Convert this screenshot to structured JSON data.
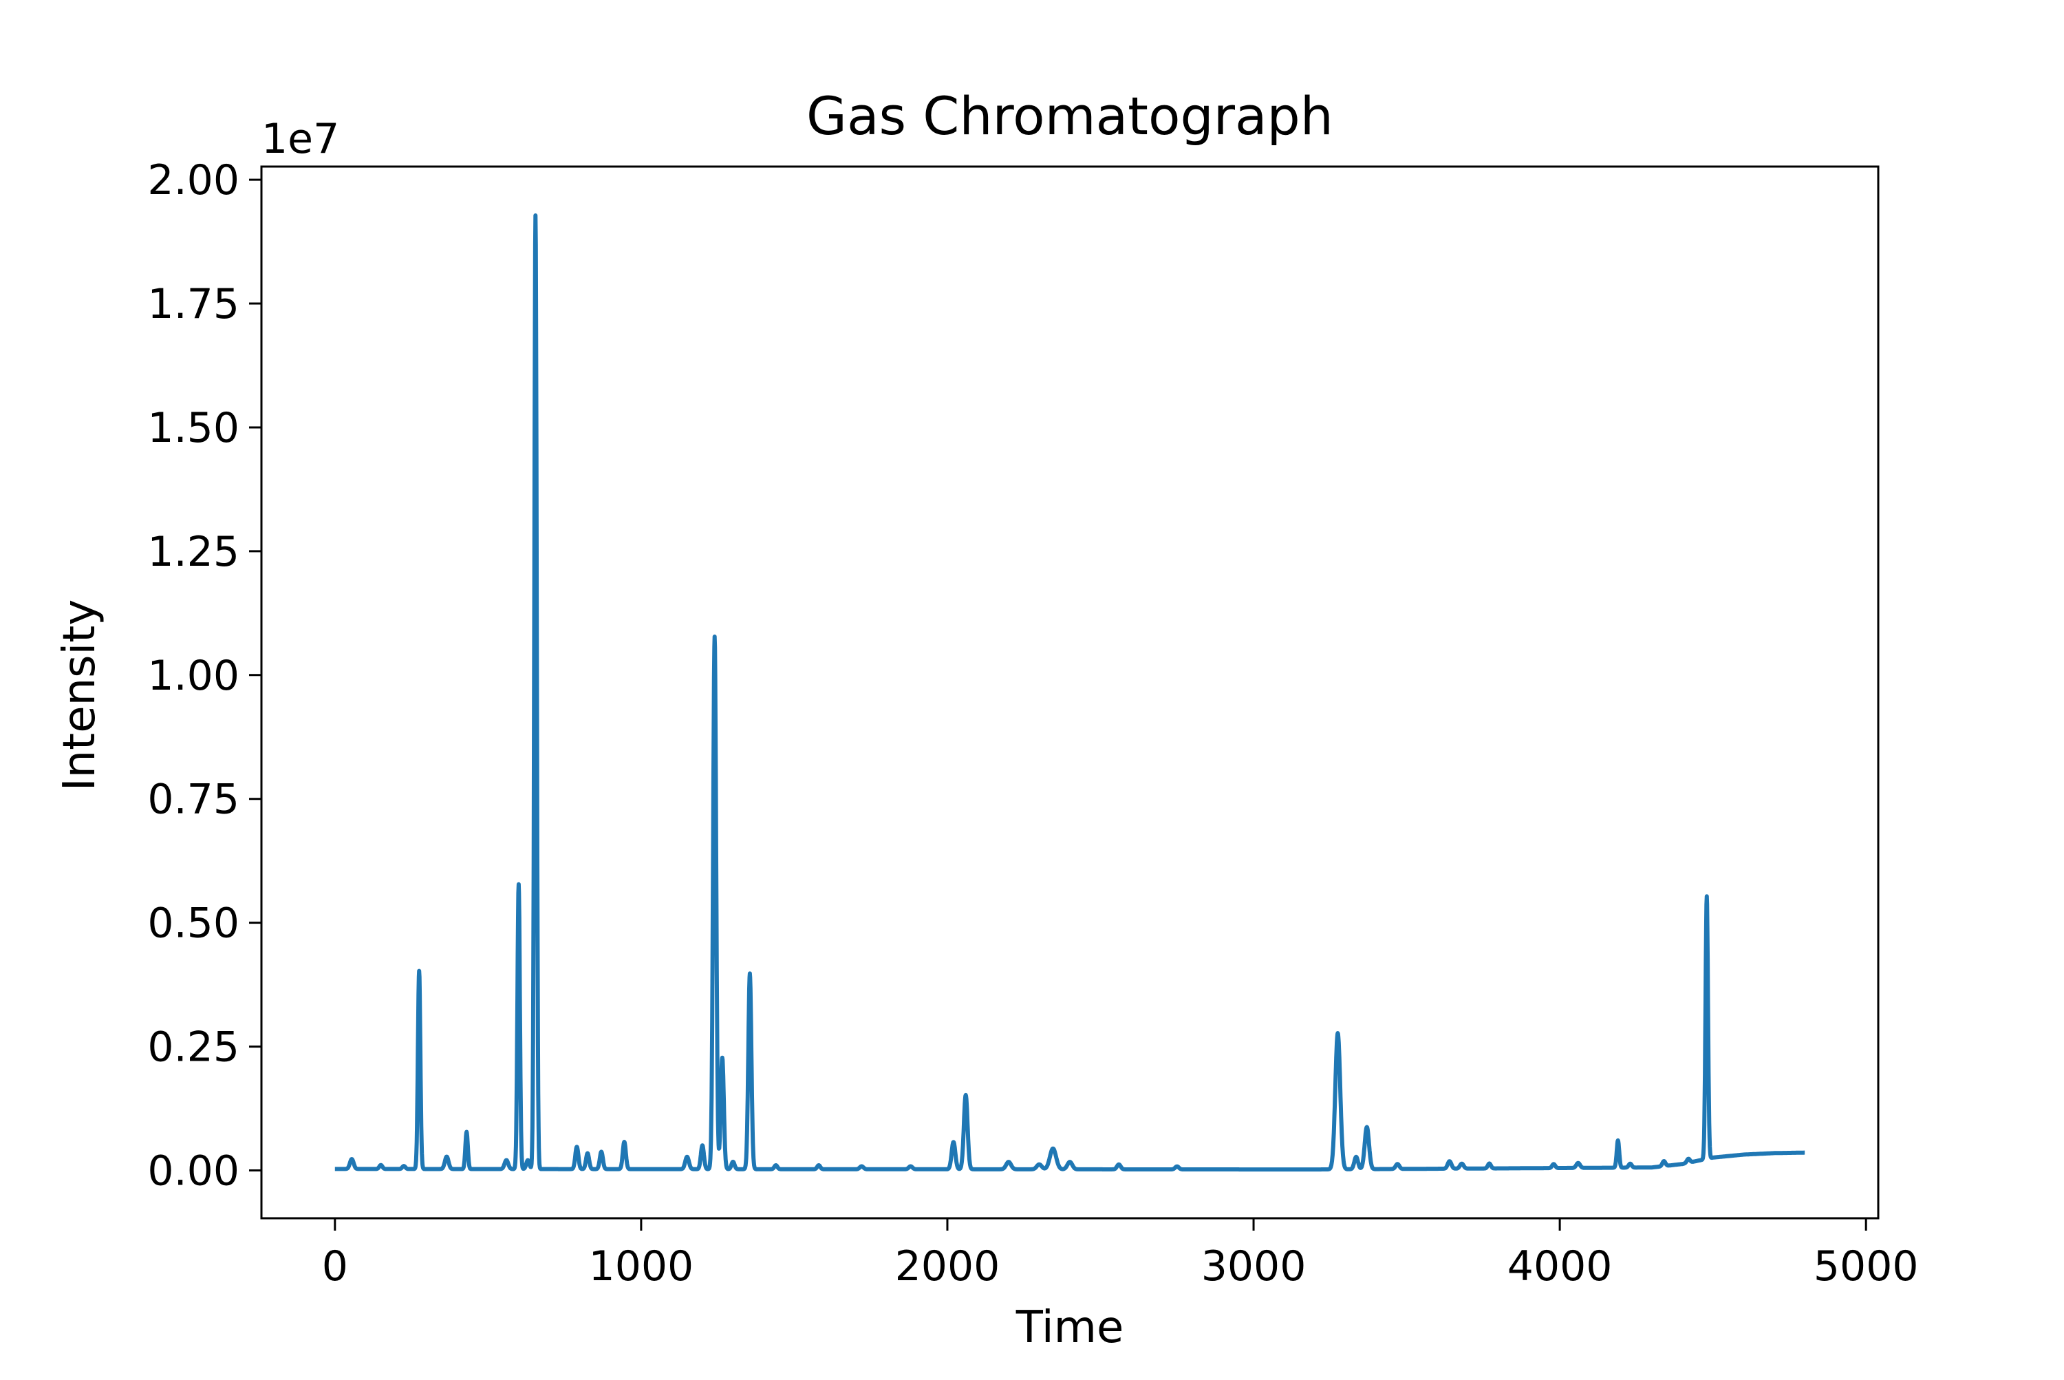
{
  "chart_data": {
    "type": "line",
    "title": "Gas Chromatograph",
    "xlabel": "Time",
    "ylabel": "Intensity",
    "y_offset_label": "1e7",
    "y_scale": 10000000,
    "xlim": [
      -240,
      5040
    ],
    "ylim": [
      -0.0965,
      2.0265
    ],
    "x_ticks": [
      0,
      1000,
      2000,
      3000,
      4000,
      5000
    ],
    "x_tick_labels": [
      "0",
      "1000",
      "2000",
      "3000",
      "4000",
      "5000"
    ],
    "y_ticks": [
      0,
      0.25,
      0.5,
      0.75,
      1.0,
      1.25,
      1.5,
      1.75,
      2.0
    ],
    "y_tick_labels": [
      "0.00",
      "0.25",
      "0.50",
      "0.75",
      "1.00",
      "1.25",
      "1.50",
      "1.75",
      "2.00"
    ],
    "grid": false,
    "legend": "none",
    "series": [
      {
        "color": "#1f77b4",
        "x_range": [
          0,
          4800
        ],
        "baseline": [
          [
            0,
            0.003
          ],
          [
            3200,
            0.002
          ],
          [
            4300,
            0.006
          ],
          [
            4400,
            0.013
          ],
          [
            4500,
            0.026
          ],
          [
            4600,
            0.032
          ],
          [
            4700,
            0.035
          ],
          [
            4800,
            0.036
          ]
        ],
        "peaks": [
          [
            55,
            0.02,
            6
          ],
          [
            150,
            0.008,
            5
          ],
          [
            225,
            0.006,
            5
          ],
          [
            275,
            0.4,
            4
          ],
          [
            365,
            0.025,
            6
          ],
          [
            430,
            0.075,
            4
          ],
          [
            560,
            0.018,
            6
          ],
          [
            600,
            0.575,
            4
          ],
          [
            630,
            0.018,
            5
          ],
          [
            655,
            1.925,
            4
          ],
          [
            790,
            0.045,
            5
          ],
          [
            825,
            0.032,
            5
          ],
          [
            870,
            0.035,
            5
          ],
          [
            945,
            0.055,
            5
          ],
          [
            1150,
            0.025,
            6
          ],
          [
            1200,
            0.048,
            5
          ],
          [
            1240,
            1.075,
            5
          ],
          [
            1265,
            0.225,
            5
          ],
          [
            1300,
            0.015,
            5
          ],
          [
            1355,
            0.395,
            5
          ],
          [
            1440,
            0.008,
            5
          ],
          [
            1580,
            0.008,
            5
          ],
          [
            1720,
            0.006,
            6
          ],
          [
            1880,
            0.006,
            6
          ],
          [
            2020,
            0.055,
            6
          ],
          [
            2060,
            0.15,
            6
          ],
          [
            2200,
            0.015,
            8
          ],
          [
            2300,
            0.01,
            8
          ],
          [
            2345,
            0.042,
            10
          ],
          [
            2400,
            0.015,
            8
          ],
          [
            2560,
            0.01,
            6
          ],
          [
            2750,
            0.006,
            6
          ],
          [
            3275,
            0.275,
            8
          ],
          [
            3335,
            0.025,
            6
          ],
          [
            3370,
            0.085,
            7
          ],
          [
            3470,
            0.01,
            6
          ],
          [
            3640,
            0.015,
            6
          ],
          [
            3680,
            0.01,
            6
          ],
          [
            3770,
            0.01,
            5
          ],
          [
            3980,
            0.008,
            5
          ],
          [
            4060,
            0.01,
            6
          ],
          [
            4190,
            0.055,
            4
          ],
          [
            4230,
            0.008,
            5
          ],
          [
            4340,
            0.01,
            5
          ],
          [
            4420,
            0.008,
            5
          ],
          [
            4480,
            0.53,
            4
          ]
        ]
      }
    ]
  }
}
